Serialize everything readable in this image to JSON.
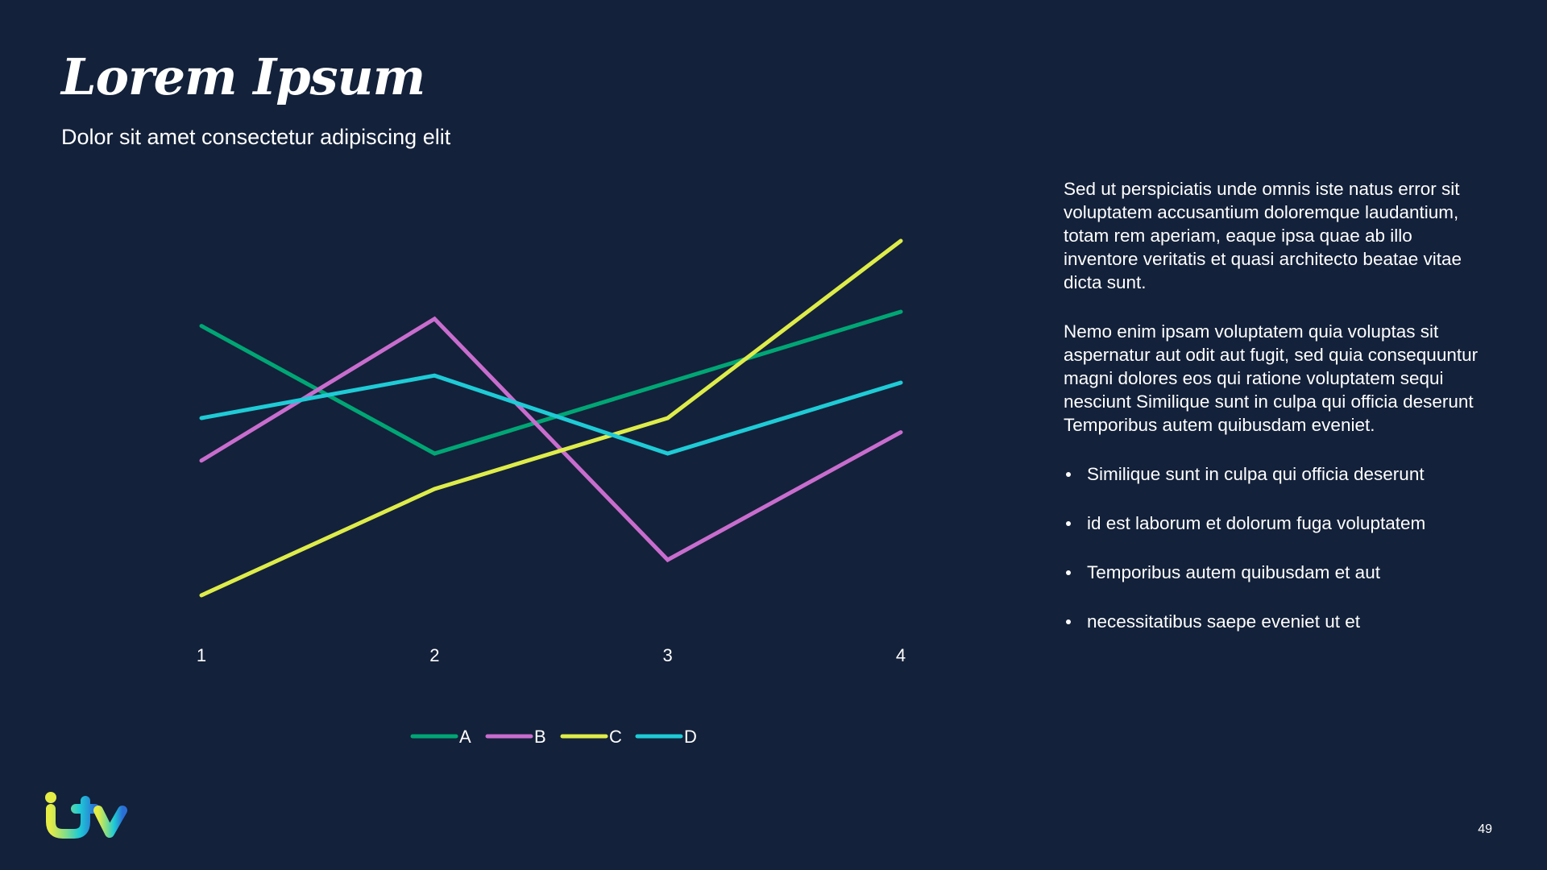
{
  "header": {
    "title": "Lorem Ipsum",
    "subtitle": "Dolor sit amet consectetur adipiscing elit"
  },
  "chart_data": {
    "type": "line",
    "title": "",
    "xlabel": "",
    "ylabel": "",
    "x": [
      "1",
      "2",
      "3",
      "4"
    ],
    "ylim": [
      0,
      6
    ],
    "grid": false,
    "y_axis_visible": false,
    "legend_position": "bottom",
    "series": [
      {
        "name": "A",
        "color": "#00a674",
        "values": [
          4.3,
          2.5,
          3.5,
          4.5
        ]
      },
      {
        "name": "B",
        "color": "#c86dce",
        "values": [
          2.4,
          4.4,
          1.0,
          2.8
        ]
      },
      {
        "name": "C",
        "color": "#deec4a",
        "values": [
          0.5,
          2.0,
          3.0,
          5.5
        ]
      },
      {
        "name": "D",
        "color": "#1ecbd6",
        "values": [
          3.0,
          3.6,
          2.5,
          3.5
        ]
      }
    ]
  },
  "body": {
    "paragraphs": [
      "Sed ut perspiciatis unde omnis iste natus error sit voluptatem accusantium doloremque laudantium, totam rem aperiam, eaque ipsa quae ab illo inventore veritatis et quasi architecto beatae vitae dicta sunt.",
      "Nemo enim ipsam voluptatem quia voluptas sit aspernatur aut odit aut fugit, sed quia consequuntur magni dolores eos qui ratione voluptatem sequi nesciunt Similique sunt in culpa qui officia deserunt Temporibus autem quibusdam eveniet."
    ],
    "bullets": [
      "Similique sunt in culpa qui officia deserunt",
      "id est laborum et dolorum fuga voluptatem",
      "Temporibus autem quibusdam et aut",
      "necessitatibus saepe eveniet ut et"
    ]
  },
  "footer": {
    "logo": "itv-logo",
    "page_number": "49"
  },
  "colors": {
    "background": "#13213a",
    "text": "#ffffff"
  }
}
